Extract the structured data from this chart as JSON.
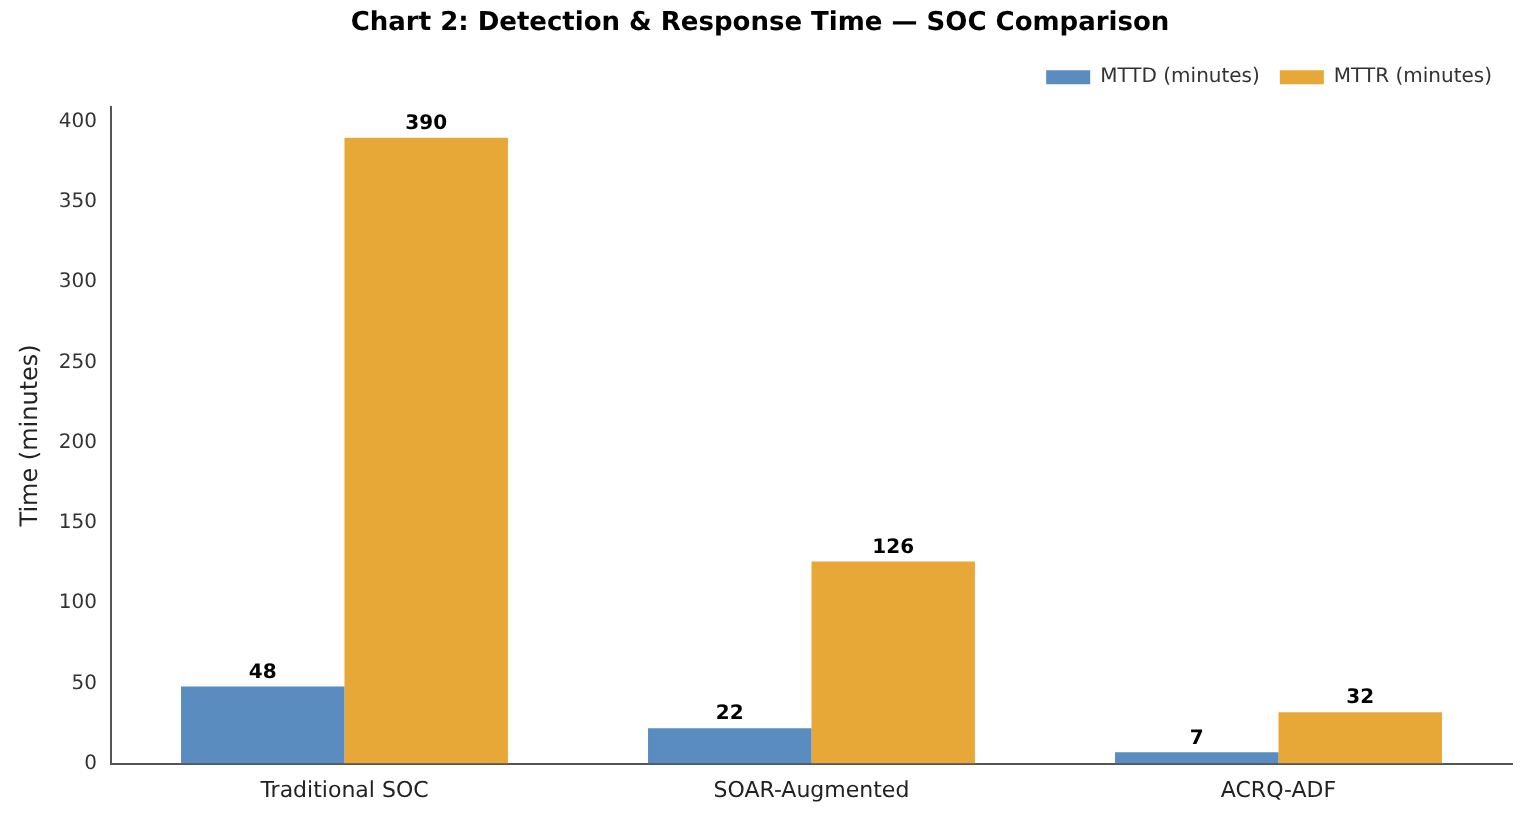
{
  "chart_data": {
    "type": "bar",
    "title": "Chart 2: Detection & Response Time — SOC Comparison",
    "ylabel": "Time (minutes)",
    "categories": [
      "Traditional SOC",
      "SOAR-Augmented",
      "ACRQ-ADF"
    ],
    "series": [
      {
        "name": "MTTD (minutes)",
        "color": "#5b8cc0",
        "values": [
          48,
          22,
          7
        ]
      },
      {
        "name": "MTTR (minutes)",
        "color": "#e8a838",
        "values": [
          390,
          126,
          32
        ]
      }
    ],
    "ylim": [
      0,
      409
    ],
    "yticks": [
      0,
      50,
      100,
      150,
      200,
      250,
      300,
      350,
      400
    ],
    "grid": false,
    "legend": "top right",
    "data_labels": true
  }
}
